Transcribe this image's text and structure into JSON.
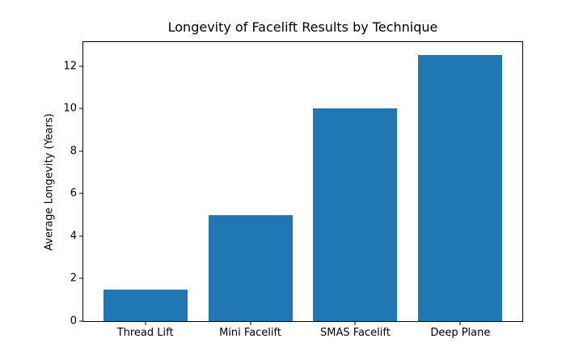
{
  "chart_data": {
    "type": "bar",
    "title": "Longevity of Facelift Results by Technique",
    "categories": [
      "Thread Lift",
      "Mini Facelift",
      "SMAS Facelift",
      "Deep Plane"
    ],
    "values": [
      1.5,
      5,
      10,
      12.5
    ],
    "series": [
      {
        "name": "Average Longevity",
        "values": [
          1.5,
          5,
          10,
          12.5
        ]
      }
    ],
    "xlabel": "",
    "ylabel": "Average Longevity (Years)",
    "ylim": [
      0,
      13.125
    ],
    "yticks": [
      0,
      2,
      4,
      6,
      8,
      10,
      12
    ],
    "bar_color": "#1f77b4",
    "grid": false,
    "legend_position": "none",
    "bar_relative_width": 0.8
  }
}
